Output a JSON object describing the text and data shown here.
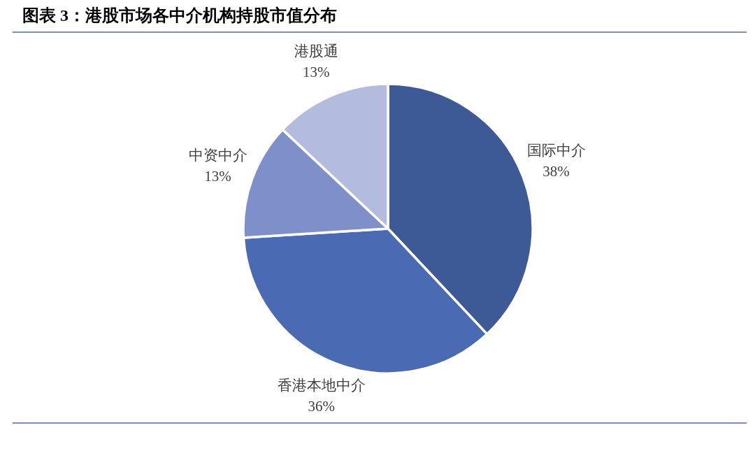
{
  "chart_data": {
    "type": "pie",
    "title": "图表 3：港股市场各中介机构持股市值分布",
    "categories": [
      "国际中介",
      "香港本地中介",
      "中资中介",
      "港股通"
    ],
    "values": [
      38,
      36,
      13,
      13
    ],
    "colors": [
      "#3d5a97",
      "#4a6ab3",
      "#7f8fca",
      "#b3bcdf"
    ],
    "value_labels": [
      "38%",
      "36%",
      "13%",
      "13%"
    ]
  }
}
